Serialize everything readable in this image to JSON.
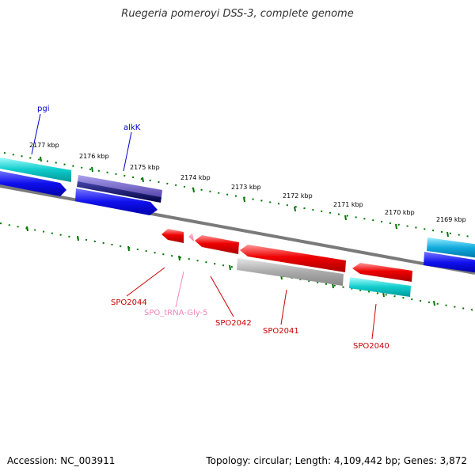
{
  "title": "Ruegeria pomeroyi DSS-3, complete genome",
  "footer": {
    "accession": "Accession: NC_003911",
    "summary": "Topology: circular; Length: 4,109,442 bp; Genes: 3,872"
  },
  "scale_ticks": [
    "2177 kbp",
    "2176 kbp",
    "2175 kbp",
    "2174 kbp",
    "2173 kbp",
    "2172 kbp",
    "2171 kbp",
    "2170 kbp",
    "2169 kbp"
  ],
  "gene_labels": {
    "pgi": "pgi",
    "alkK": "alkK",
    "SPO2044": "SPO2044",
    "SPO_tRNA_Gly_5": "SPO_tRNA-Gly-5",
    "SPO2042": "SPO2042",
    "SPO2041": "SPO2041",
    "SPO2040": "SPO2040"
  },
  "colors": {
    "forward_label": "#0000cc",
    "reverse_label": "#cc0000",
    "trna_label": "#ee88bb",
    "tick": "#007700",
    "backbone": "#808080",
    "cds_forward": "#0000ee",
    "cds_reverse": "#ee0000",
    "gene_cyan": "#00c8c8",
    "gene_gray": "#aaaaaa",
    "gene_navy": "#000066",
    "gene_purple": "#7766cc"
  }
}
